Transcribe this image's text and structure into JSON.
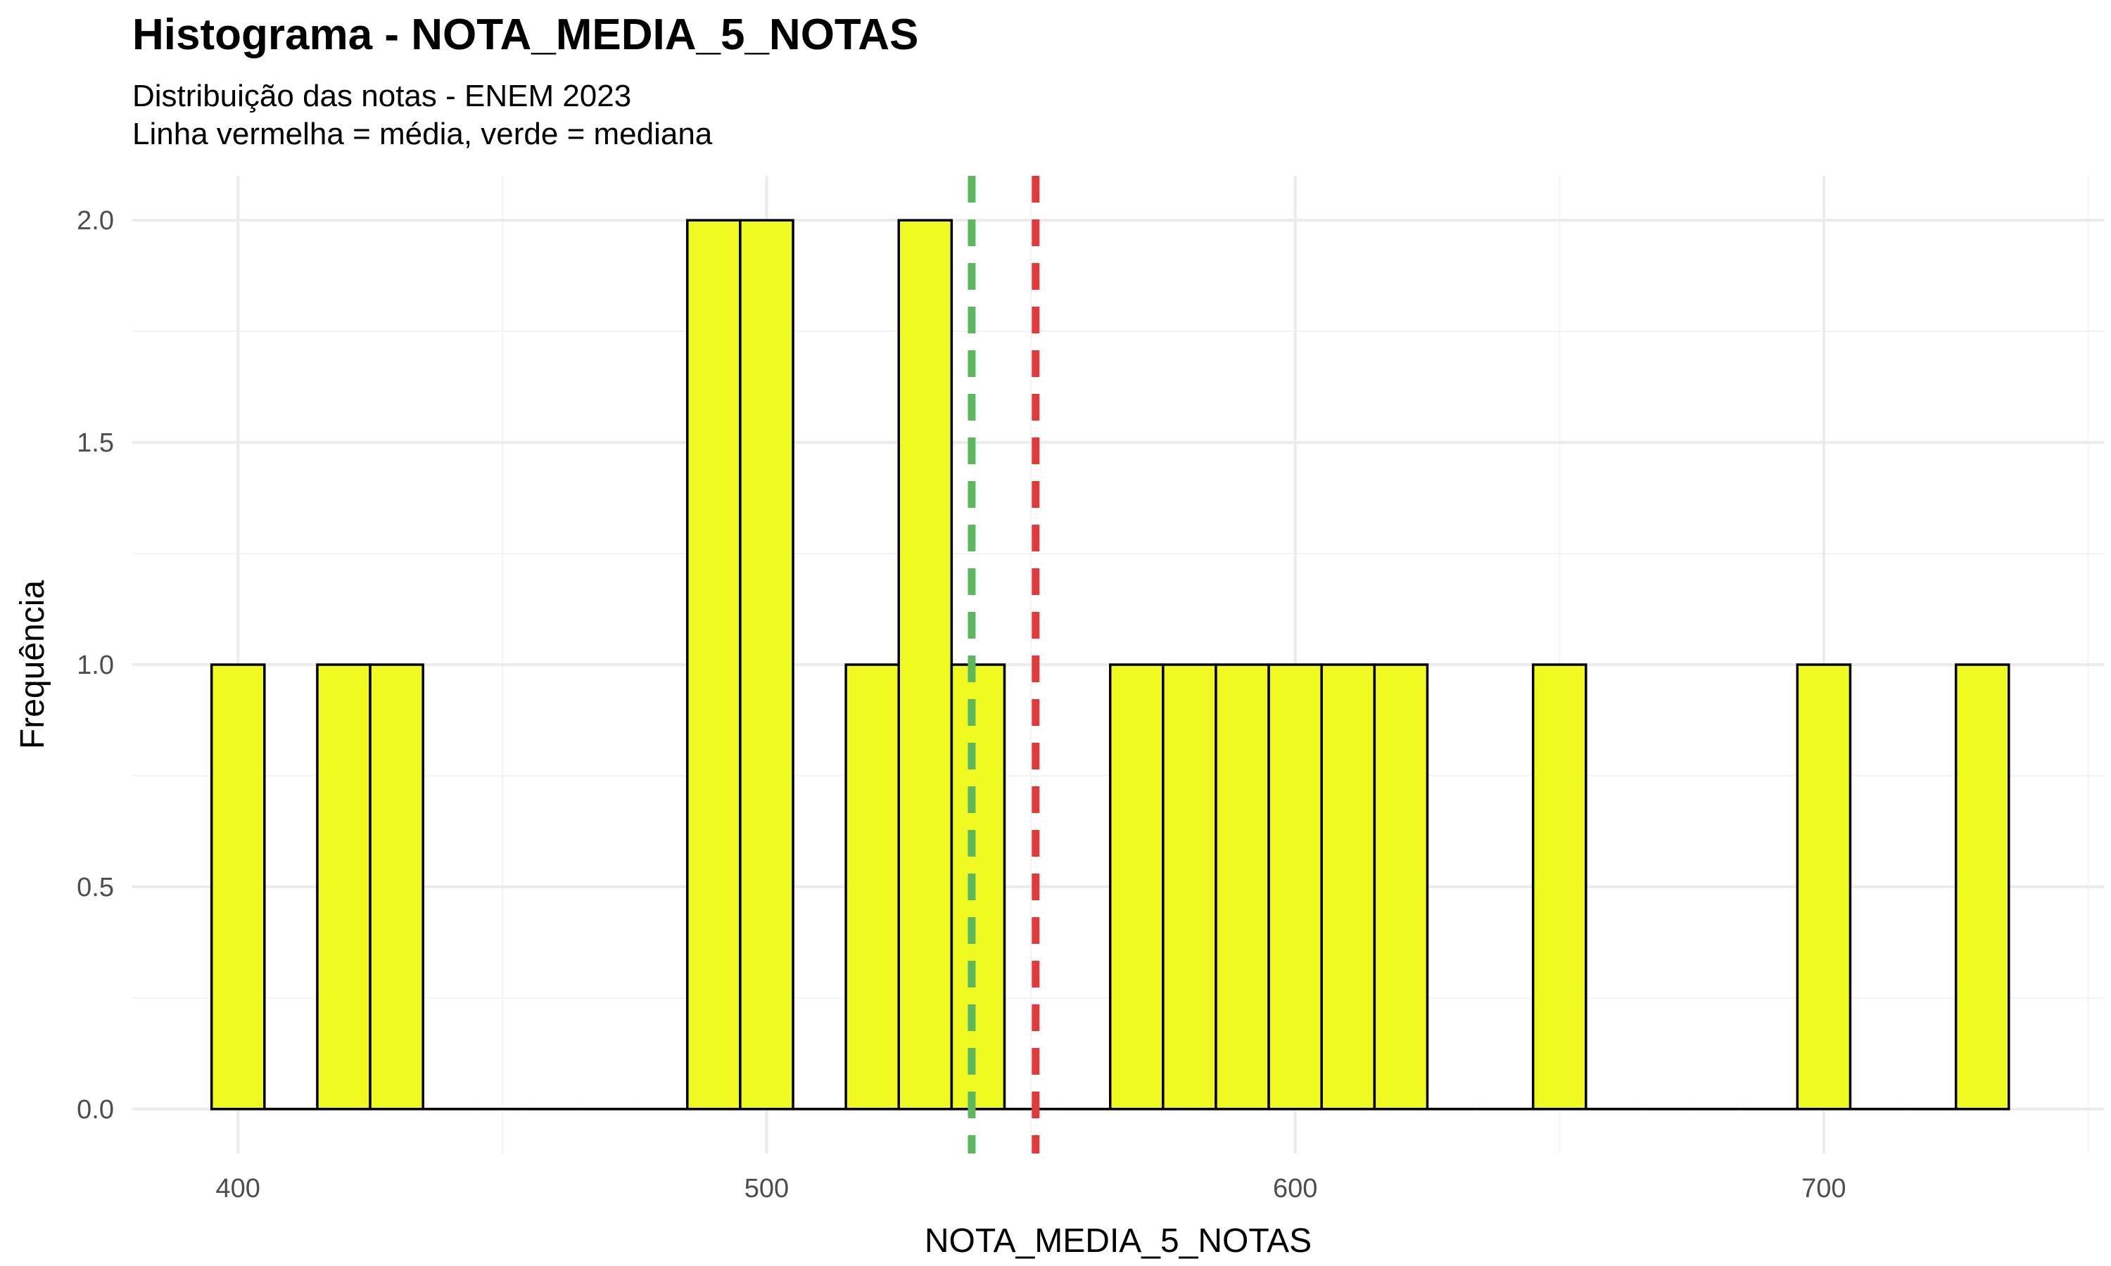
{
  "chart_data": {
    "type": "bar",
    "title": "Histograma - NOTA_MEDIA_5_NOTAS",
    "subtitle_lines": [
      "Distribuição das notas - ENEM 2023",
      "Linha vermelha = média, verde = mediana"
    ],
    "xlabel": "NOTA_MEDIA_5_NOTAS",
    "ylabel": "Frequência",
    "xlim": [
      380,
      753
    ],
    "ylim": [
      -0.1,
      2.1
    ],
    "x_ticks": [
      400,
      500,
      600,
      700
    ],
    "x_tick_labels": [
      "400",
      "500",
      "600",
      "700"
    ],
    "y_ticks": [
      0,
      0.5,
      1,
      1.5,
      2
    ],
    "y_tick_labels": [
      "0.0",
      "0.5",
      "1.0",
      "1.5",
      "2.0"
    ],
    "bin_width": 10,
    "bins": [
      {
        "start": 395,
        "end": 405,
        "count": 1
      },
      {
        "start": 405,
        "end": 415,
        "count": 0
      },
      {
        "start": 415,
        "end": 425,
        "count": 1
      },
      {
        "start": 425,
        "end": 435,
        "count": 1
      },
      {
        "start": 435,
        "end": 445,
        "count": 0
      },
      {
        "start": 445,
        "end": 455,
        "count": 0
      },
      {
        "start": 455,
        "end": 465,
        "count": 0
      },
      {
        "start": 465,
        "end": 475,
        "count": 0
      },
      {
        "start": 475,
        "end": 485,
        "count": 0
      },
      {
        "start": 485,
        "end": 495,
        "count": 2
      },
      {
        "start": 495,
        "end": 505,
        "count": 2
      },
      {
        "start": 505,
        "end": 515,
        "count": 0
      },
      {
        "start": 515,
        "end": 525,
        "count": 1
      },
      {
        "start": 525,
        "end": 535,
        "count": 2
      },
      {
        "start": 535,
        "end": 545,
        "count": 1
      },
      {
        "start": 545,
        "end": 555,
        "count": 0
      },
      {
        "start": 555,
        "end": 565,
        "count": 0
      },
      {
        "start": 565,
        "end": 575,
        "count": 1
      },
      {
        "start": 575,
        "end": 585,
        "count": 1
      },
      {
        "start": 585,
        "end": 595,
        "count": 1
      },
      {
        "start": 595,
        "end": 605,
        "count": 1
      },
      {
        "start": 605,
        "end": 615,
        "count": 1
      },
      {
        "start": 615,
        "end": 625,
        "count": 1
      },
      {
        "start": 625,
        "end": 635,
        "count": 0
      },
      {
        "start": 635,
        "end": 645,
        "count": 0
      },
      {
        "start": 645,
        "end": 655,
        "count": 1
      },
      {
        "start": 655,
        "end": 665,
        "count": 0
      },
      {
        "start": 665,
        "end": 675,
        "count": 0
      },
      {
        "start": 675,
        "end": 685,
        "count": 0
      },
      {
        "start": 685,
        "end": 695,
        "count": 0
      },
      {
        "start": 695,
        "end": 705,
        "count": 1
      },
      {
        "start": 705,
        "end": 715,
        "count": 0
      },
      {
        "start": 715,
        "end": 725,
        "count": 0
      },
      {
        "start": 725,
        "end": 735,
        "count": 1
      }
    ],
    "mean": 550.9,
    "median": 538.8,
    "colors": {
      "bar_fill": "#F0F922",
      "bar_stroke": "#000000",
      "mean_line": "#E03A3A",
      "median_line": "#5CB85C",
      "grid_major": "#EBEBEB",
      "grid_minor": "#F3F3F3",
      "tick_text": "#4D4D4D"
    },
    "grid": true,
    "legend": "none"
  }
}
